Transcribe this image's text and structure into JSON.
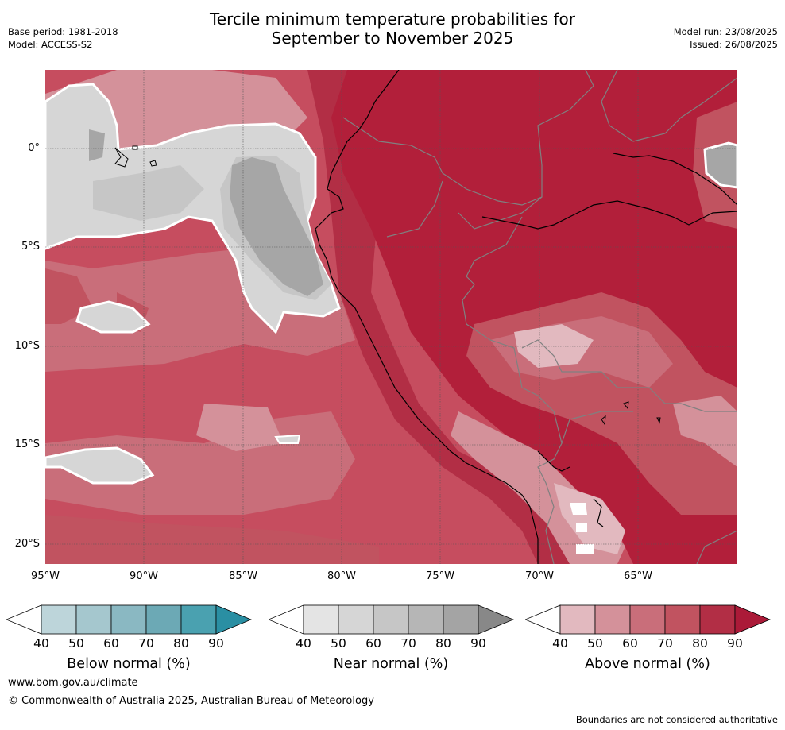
{
  "header": {
    "title_line1": "Tercile minimum temperature probabilities for",
    "title_line2": "September to November 2025",
    "base_period": "Base period: 1981-2018",
    "model": "Model: ACCESS-S2",
    "model_run": "Model run: 23/08/2025",
    "issued": "Issued: 26/08/2025"
  },
  "map": {
    "lat_labels": [
      "0°",
      "5°S",
      "10°S",
      "15°S",
      "20°S"
    ],
    "lon_labels": [
      "95°W",
      "90°W",
      "85°W",
      "80°W",
      "75°W",
      "70°W",
      "65°W"
    ],
    "colors": {
      "ocean_base": "#c64d5f",
      "land_high": "#b21f3a",
      "near_normal_light": "#d6d6d6",
      "near_normal_dark": "#a6a6a6",
      "coastline": "#000000",
      "borders": "#808080"
    }
  },
  "colorbars": [
    {
      "title": "Below normal (%)",
      "ticks": [
        "40",
        "50",
        "60",
        "70",
        "80",
        "90"
      ],
      "colors": [
        "#ffffff",
        "#bdd5da",
        "#a5c7ce",
        "#8ab8c2",
        "#6ca9b5",
        "#4aa1b0",
        "#2a8fa3"
      ]
    },
    {
      "title": "Near normal (%)",
      "ticks": [
        "40",
        "50",
        "60",
        "70",
        "80",
        "90"
      ],
      "colors": [
        "#ffffff",
        "#e4e4e4",
        "#d6d6d6",
        "#c6c6c6",
        "#b6b6b6",
        "#a4a4a4",
        "#888888"
      ]
    },
    {
      "title": "Above normal (%)",
      "ticks": [
        "40",
        "50",
        "60",
        "70",
        "80",
        "90"
      ],
      "colors": [
        "#ffffff",
        "#e2b9bf",
        "#d4919a",
        "#c96e7a",
        "#c15360",
        "#b22e45",
        "#ab1a38"
      ]
    }
  ],
  "footer": {
    "url": "www.bom.gov.au/climate",
    "copyright": "© Commonwealth of Australia 2025, Australian Bureau of Meteorology",
    "note": "Boundaries are not considered authoritative"
  }
}
